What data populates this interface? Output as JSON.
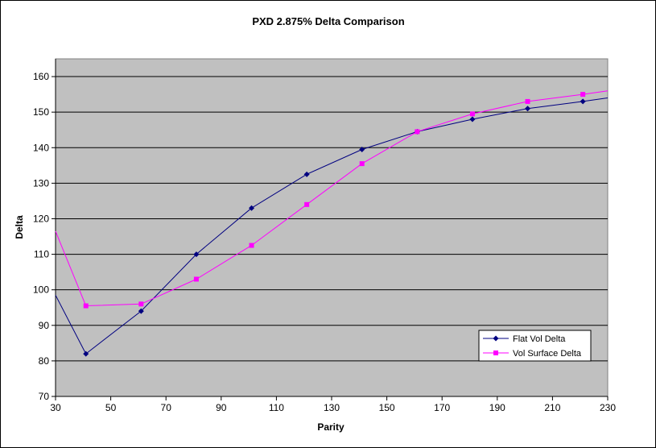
{
  "chart_data": {
    "type": "line",
    "title": "PXD 2.875% Delta Comparison",
    "xlabel": "Parity",
    "ylabel": "Delta",
    "xlim": [
      30,
      230
    ],
    "ylim": [
      70,
      165
    ],
    "x_ticks": [
      "30",
      "50",
      "70",
      "90",
      "110",
      "130",
      "150",
      "170",
      "190",
      "210",
      "230"
    ],
    "y_ticks": [
      "70",
      "80",
      "90",
      "100",
      "110",
      "120",
      "130",
      "140",
      "150",
      "160"
    ],
    "grid": "horizontal",
    "plot_background": "#c0c0c0",
    "legend_position": "bottom-right",
    "series": [
      {
        "name": "Flat Vol Delta",
        "color": "#000080",
        "marker": "diamond",
        "x": [
          41,
          61,
          81,
          101,
          121,
          141,
          161,
          181,
          201,
          221
        ],
        "values": [
          82,
          94,
          110,
          123,
          132.5,
          139.5,
          144.5,
          148,
          151,
          153
        ],
        "lead_in": [
          30,
          98.5
        ],
        "lead_out": [
          230,
          154
        ]
      },
      {
        "name": "Vol Surface Delta",
        "color": "#ff00ff",
        "marker": "square",
        "x": [
          41,
          61,
          81,
          101,
          121,
          141,
          161,
          181,
          201,
          221
        ],
        "values": [
          95.5,
          96,
          103,
          112.5,
          124,
          135.5,
          144.5,
          149.5,
          153,
          155
        ],
        "lead_in": [
          30,
          116.5
        ],
        "lead_out": [
          230,
          156
        ]
      }
    ]
  }
}
